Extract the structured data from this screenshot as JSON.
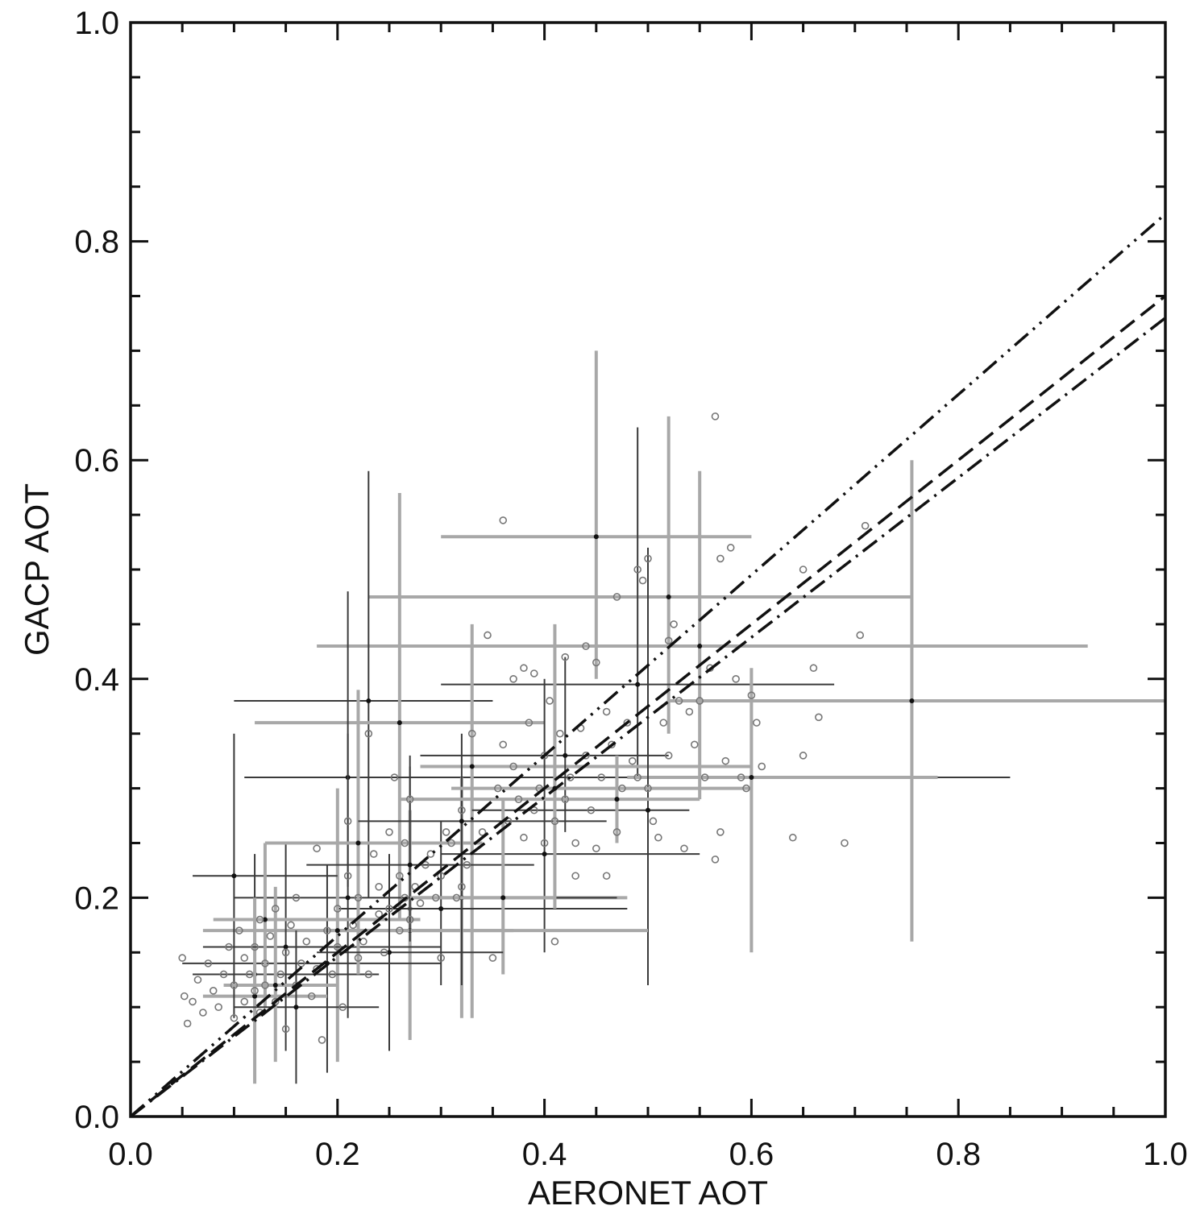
{
  "chart_data": {
    "type": "scatter",
    "title": "",
    "xlabel": "AERONET AOT",
    "ylabel": "GACP AOT",
    "xlim": [
      0.0,
      1.0
    ],
    "ylim": [
      0.0,
      1.0
    ],
    "xticks": [
      "0.0",
      "0.2",
      "0.4",
      "0.6",
      "0.8",
      "1.0"
    ],
    "yticks": [
      "0.0",
      "0.2",
      "0.4",
      "0.6",
      "0.8",
      "1.0"
    ],
    "minor_tick_step": 0.05,
    "grid": false,
    "legend": "none",
    "lines": [
      {
        "style": "dash-dot-dot",
        "x": [
          0.0,
          1.0
        ],
        "y": [
          0.0,
          0.825
        ]
      },
      {
        "style": "dashed",
        "x": [
          0.0,
          1.0
        ],
        "y": [
          0.0,
          0.75
        ]
      },
      {
        "style": "dash-dot",
        "x": [
          0.0,
          1.0
        ],
        "y": [
          0.0,
          0.73
        ]
      }
    ],
    "points": [
      {
        "x": 0.05,
        "y": 0.145
      },
      {
        "x": 0.052,
        "y": 0.11
      },
      {
        "x": 0.055,
        "y": 0.085
      },
      {
        "x": 0.06,
        "y": 0.105
      },
      {
        "x": 0.065,
        "y": 0.125
      },
      {
        "x": 0.07,
        "y": 0.095
      },
      {
        "x": 0.075,
        "y": 0.14
      },
      {
        "x": 0.08,
        "y": 0.115
      },
      {
        "x": 0.085,
        "y": 0.1
      },
      {
        "x": 0.09,
        "y": 0.13
      },
      {
        "x": 0.095,
        "y": 0.155
      },
      {
        "x": 0.1,
        "y": 0.12
      },
      {
        "x": 0.1,
        "y": 0.09
      },
      {
        "x": 0.105,
        "y": 0.17
      },
      {
        "x": 0.11,
        "y": 0.145
      },
      {
        "x": 0.11,
        "y": 0.105
      },
      {
        "x": 0.115,
        "y": 0.13
      },
      {
        "x": 0.12,
        "y": 0.155
      },
      {
        "x": 0.12,
        "y": 0.115
      },
      {
        "x": 0.125,
        "y": 0.18
      },
      {
        "x": 0.125,
        "y": 0.095
      },
      {
        "x": 0.13,
        "y": 0.14
      },
      {
        "x": 0.13,
        "y": 0.12
      },
      {
        "x": 0.135,
        "y": 0.165
      },
      {
        "x": 0.14,
        "y": 0.105
      },
      {
        "x": 0.14,
        "y": 0.19
      },
      {
        "x": 0.145,
        "y": 0.13
      },
      {
        "x": 0.15,
        "y": 0.15
      },
      {
        "x": 0.15,
        "y": 0.08
      },
      {
        "x": 0.155,
        "y": 0.175
      },
      {
        "x": 0.16,
        "y": 0.12
      },
      {
        "x": 0.16,
        "y": 0.2
      },
      {
        "x": 0.165,
        "y": 0.14
      },
      {
        "x": 0.17,
        "y": 0.16
      },
      {
        "x": 0.175,
        "y": 0.11
      },
      {
        "x": 0.18,
        "y": 0.245
      },
      {
        "x": 0.18,
        "y": 0.135
      },
      {
        "x": 0.185,
        "y": 0.07
      },
      {
        "x": 0.19,
        "y": 0.17
      },
      {
        "x": 0.195,
        "y": 0.13
      },
      {
        "x": 0.2,
        "y": 0.19
      },
      {
        "x": 0.2,
        "y": 0.155
      },
      {
        "x": 0.205,
        "y": 0.1
      },
      {
        "x": 0.21,
        "y": 0.22
      },
      {
        "x": 0.21,
        "y": 0.27
      },
      {
        "x": 0.215,
        "y": 0.175
      },
      {
        "x": 0.22,
        "y": 0.145
      },
      {
        "x": 0.22,
        "y": 0.2
      },
      {
        "x": 0.225,
        "y": 0.16
      },
      {
        "x": 0.23,
        "y": 0.35
      },
      {
        "x": 0.23,
        "y": 0.13
      },
      {
        "x": 0.235,
        "y": 0.24
      },
      {
        "x": 0.24,
        "y": 0.185
      },
      {
        "x": 0.24,
        "y": 0.21
      },
      {
        "x": 0.245,
        "y": 0.15
      },
      {
        "x": 0.25,
        "y": 0.26
      },
      {
        "x": 0.25,
        "y": 0.19
      },
      {
        "x": 0.255,
        "y": 0.31
      },
      {
        "x": 0.26,
        "y": 0.17
      },
      {
        "x": 0.26,
        "y": 0.22
      },
      {
        "x": 0.265,
        "y": 0.2
      },
      {
        "x": 0.265,
        "y": 0.25
      },
      {
        "x": 0.27,
        "y": 0.18
      },
      {
        "x": 0.27,
        "y": 0.29
      },
      {
        "x": 0.275,
        "y": 0.21
      },
      {
        "x": 0.28,
        "y": 0.195
      },
      {
        "x": 0.285,
        "y": 0.23
      },
      {
        "x": 0.29,
        "y": 0.24
      },
      {
        "x": 0.295,
        "y": 0.2
      },
      {
        "x": 0.3,
        "y": 0.22
      },
      {
        "x": 0.3,
        "y": 0.145
      },
      {
        "x": 0.305,
        "y": 0.26
      },
      {
        "x": 0.31,
        "y": 0.25
      },
      {
        "x": 0.315,
        "y": 0.2
      },
      {
        "x": 0.32,
        "y": 0.21
      },
      {
        "x": 0.32,
        "y": 0.28
      },
      {
        "x": 0.325,
        "y": 0.23
      },
      {
        "x": 0.33,
        "y": 0.35
      },
      {
        "x": 0.34,
        "y": 0.26
      },
      {
        "x": 0.345,
        "y": 0.44
      },
      {
        "x": 0.35,
        "y": 0.145
      },
      {
        "x": 0.355,
        "y": 0.3
      },
      {
        "x": 0.36,
        "y": 0.545
      },
      {
        "x": 0.36,
        "y": 0.34
      },
      {
        "x": 0.365,
        "y": 0.27
      },
      {
        "x": 0.37,
        "y": 0.32
      },
      {
        "x": 0.37,
        "y": 0.4
      },
      {
        "x": 0.375,
        "y": 0.29
      },
      {
        "x": 0.38,
        "y": 0.41
      },
      {
        "x": 0.38,
        "y": 0.255
      },
      {
        "x": 0.385,
        "y": 0.36
      },
      {
        "x": 0.39,
        "y": 0.28
      },
      {
        "x": 0.39,
        "y": 0.405
      },
      {
        "x": 0.395,
        "y": 0.3
      },
      {
        "x": 0.4,
        "y": 0.33
      },
      {
        "x": 0.4,
        "y": 0.25
      },
      {
        "x": 0.405,
        "y": 0.38
      },
      {
        "x": 0.41,
        "y": 0.27
      },
      {
        "x": 0.41,
        "y": 0.16
      },
      {
        "x": 0.415,
        "y": 0.35
      },
      {
        "x": 0.42,
        "y": 0.42
      },
      {
        "x": 0.42,
        "y": 0.29
      },
      {
        "x": 0.425,
        "y": 0.31
      },
      {
        "x": 0.43,
        "y": 0.25
      },
      {
        "x": 0.43,
        "y": 0.22
      },
      {
        "x": 0.435,
        "y": 0.355
      },
      {
        "x": 0.44,
        "y": 0.43
      },
      {
        "x": 0.44,
        "y": 0.33
      },
      {
        "x": 0.445,
        "y": 0.28
      },
      {
        "x": 0.45,
        "y": 0.415
      },
      {
        "x": 0.45,
        "y": 0.245
      },
      {
        "x": 0.455,
        "y": 0.31
      },
      {
        "x": 0.46,
        "y": 0.37
      },
      {
        "x": 0.46,
        "y": 0.22
      },
      {
        "x": 0.465,
        "y": 0.34
      },
      {
        "x": 0.47,
        "y": 0.26
      },
      {
        "x": 0.47,
        "y": 0.475
      },
      {
        "x": 0.475,
        "y": 0.3
      },
      {
        "x": 0.48,
        "y": 0.36
      },
      {
        "x": 0.485,
        "y": 0.325
      },
      {
        "x": 0.49,
        "y": 0.31
      },
      {
        "x": 0.49,
        "y": 0.5
      },
      {
        "x": 0.495,
        "y": 0.49
      },
      {
        "x": 0.5,
        "y": 0.3
      },
      {
        "x": 0.5,
        "y": 0.51
      },
      {
        "x": 0.505,
        "y": 0.27
      },
      {
        "x": 0.51,
        "y": 0.255
      },
      {
        "x": 0.515,
        "y": 0.36
      },
      {
        "x": 0.52,
        "y": 0.33
      },
      {
        "x": 0.52,
        "y": 0.435
      },
      {
        "x": 0.525,
        "y": 0.45
      },
      {
        "x": 0.53,
        "y": 0.38
      },
      {
        "x": 0.535,
        "y": 0.245
      },
      {
        "x": 0.54,
        "y": 0.37
      },
      {
        "x": 0.545,
        "y": 0.34
      },
      {
        "x": 0.55,
        "y": 0.38
      },
      {
        "x": 0.555,
        "y": 0.31
      },
      {
        "x": 0.56,
        "y": 0.41
      },
      {
        "x": 0.565,
        "y": 0.64
      },
      {
        "x": 0.565,
        "y": 0.235
      },
      {
        "x": 0.57,
        "y": 0.26
      },
      {
        "x": 0.57,
        "y": 0.51
      },
      {
        "x": 0.575,
        "y": 0.325
      },
      {
        "x": 0.58,
        "y": 0.52
      },
      {
        "x": 0.585,
        "y": 0.4
      },
      {
        "x": 0.59,
        "y": 0.31
      },
      {
        "x": 0.595,
        "y": 0.3
      },
      {
        "x": 0.6,
        "y": 0.385
      },
      {
        "x": 0.605,
        "y": 0.36
      },
      {
        "x": 0.61,
        "y": 0.32
      },
      {
        "x": 0.64,
        "y": 0.255
      },
      {
        "x": 0.65,
        "y": 0.5
      },
      {
        "x": 0.65,
        "y": 0.33
      },
      {
        "x": 0.66,
        "y": 0.41
      },
      {
        "x": 0.665,
        "y": 0.365
      },
      {
        "x": 0.69,
        "y": 0.25
      },
      {
        "x": 0.705,
        "y": 0.44
      },
      {
        "x": 0.71,
        "y": 0.54
      }
    ],
    "error_bars": [
      {
        "x": 0.45,
        "y": 0.53,
        "xlo": 0.3,
        "xhi": 0.6,
        "ylo": 0.4,
        "yhi": 0.7,
        "shade": "light"
      },
      {
        "x": 0.52,
        "y": 0.475,
        "xlo": 0.23,
        "xhi": 0.755,
        "ylo": 0.35,
        "yhi": 0.64,
        "shade": "light"
      },
      {
        "x": 0.55,
        "y": 0.43,
        "xlo": 0.18,
        "xhi": 0.925,
        "ylo": 0.29,
        "yhi": 0.59,
        "shade": "light"
      },
      {
        "x": 0.755,
        "y": 0.38,
        "xlo": 0.52,
        "xhi": 1.0,
        "ylo": 0.16,
        "yhi": 0.6,
        "shade": "light"
      },
      {
        "x": 0.49,
        "y": 0.395,
        "xlo": 0.3,
        "xhi": 0.68,
        "ylo": 0.31,
        "yhi": 0.63,
        "shade": "dark"
      },
      {
        "x": 0.23,
        "y": 0.38,
        "xlo": 0.1,
        "xhi": 0.35,
        "ylo": 0.2,
        "yhi": 0.59,
        "shade": "dark"
      },
      {
        "x": 0.26,
        "y": 0.36,
        "xlo": 0.12,
        "xhi": 0.4,
        "ylo": 0.18,
        "yhi": 0.57,
        "shade": "light"
      },
      {
        "x": 0.21,
        "y": 0.31,
        "xlo": 0.11,
        "xhi": 0.85,
        "ylo": 0.21,
        "yhi": 0.48,
        "shade": "dark"
      },
      {
        "x": 0.6,
        "y": 0.31,
        "xlo": 0.48,
        "xhi": 0.78,
        "ylo": 0.15,
        "yhi": 0.41,
        "shade": "light"
      },
      {
        "x": 0.33,
        "y": 0.32,
        "xlo": 0.28,
        "xhi": 0.6,
        "ylo": 0.09,
        "yhi": 0.45,
        "shade": "light"
      },
      {
        "x": 0.5,
        "y": 0.28,
        "xlo": 0.33,
        "xhi": 0.54,
        "ylo": 0.12,
        "yhi": 0.52,
        "shade": "dark"
      },
      {
        "x": 0.4,
        "y": 0.24,
        "xlo": 0.3,
        "xhi": 0.55,
        "ylo": 0.15,
        "yhi": 0.4,
        "shade": "dark"
      },
      {
        "x": 0.32,
        "y": 0.2,
        "xlo": 0.28,
        "xhi": 0.48,
        "ylo": 0.09,
        "yhi": 0.31,
        "shade": "light"
      },
      {
        "x": 0.27,
        "y": 0.19,
        "xlo": 0.2,
        "xhi": 0.36,
        "ylo": 0.1,
        "yhi": 0.32,
        "shade": "dark"
      },
      {
        "x": 0.27,
        "y": 0.17,
        "xlo": 0.19,
        "xhi": 0.5,
        "ylo": 0.07,
        "yhi": 0.28,
        "shade": "light"
      },
      {
        "x": 0.3,
        "y": 0.19,
        "xlo": 0.2,
        "xhi": 0.48,
        "ylo": 0.12,
        "yhi": 0.27,
        "shade": "dark"
      },
      {
        "x": 0.21,
        "y": 0.2,
        "xlo": 0.1,
        "xhi": 0.47,
        "ylo": 0.09,
        "yhi": 0.35,
        "shade": "dark"
      },
      {
        "x": 0.2,
        "y": 0.17,
        "xlo": 0.07,
        "xhi": 0.37,
        "ylo": 0.05,
        "yhi": 0.3,
        "shade": "light"
      },
      {
        "x": 0.19,
        "y": 0.14,
        "xlo": 0.05,
        "xhi": 0.3,
        "ylo": 0.04,
        "yhi": 0.23,
        "shade": "dark"
      },
      {
        "x": 0.12,
        "y": 0.13,
        "xlo": 0.06,
        "xhi": 0.24,
        "ylo": 0.04,
        "yhi": 0.24,
        "shade": "dark"
      },
      {
        "x": 0.12,
        "y": 0.11,
        "xlo": 0.07,
        "xhi": 0.19,
        "ylo": 0.03,
        "yhi": 0.2,
        "shade": "light"
      },
      {
        "x": 0.1,
        "y": 0.22,
        "xlo": 0.06,
        "xhi": 0.2,
        "ylo": 0.09,
        "yhi": 0.35,
        "shade": "dark"
      },
      {
        "x": 0.15,
        "y": 0.155,
        "xlo": 0.07,
        "xhi": 0.3,
        "ylo": 0.06,
        "yhi": 0.25,
        "shade": "dark"
      },
      {
        "x": 0.13,
        "y": 0.18,
        "xlo": 0.08,
        "xhi": 0.28,
        "ylo": 0.1,
        "yhi": 0.25,
        "shade": "light"
      },
      {
        "x": 0.22,
        "y": 0.25,
        "xlo": 0.13,
        "xhi": 0.34,
        "ylo": 0.13,
        "yhi": 0.39,
        "shade": "light"
      },
      {
        "x": 0.32,
        "y": 0.27,
        "xlo": 0.22,
        "xhi": 0.46,
        "ylo": 0.12,
        "yhi": 0.35,
        "shade": "dark"
      },
      {
        "x": 0.42,
        "y": 0.33,
        "xlo": 0.28,
        "xhi": 0.52,
        "ylo": 0.26,
        "yhi": 0.42,
        "shade": "dark"
      },
      {
        "x": 0.27,
        "y": 0.23,
        "xlo": 0.17,
        "xhi": 0.39,
        "ylo": 0.16,
        "yhi": 0.33,
        "shade": "dark"
      },
      {
        "x": 0.47,
        "y": 0.29,
        "xlo": 0.26,
        "xhi": 0.55,
        "ylo": 0.25,
        "yhi": 0.33,
        "shade": "light"
      },
      {
        "x": 0.41,
        "y": 0.3,
        "xlo": 0.31,
        "xhi": 0.6,
        "ylo": 0.19,
        "yhi": 0.45,
        "shade": "light"
      },
      {
        "x": 0.36,
        "y": 0.2,
        "xlo": 0.27,
        "xhi": 0.41,
        "ylo": 0.13,
        "yhi": 0.29,
        "shade": "light"
      },
      {
        "x": 0.25,
        "y": 0.15,
        "xlo": 0.18,
        "xhi": 0.36,
        "ylo": 0.06,
        "yhi": 0.24,
        "shade": "dark"
      },
      {
        "x": 0.16,
        "y": 0.1,
        "xlo": 0.1,
        "xhi": 0.24,
        "ylo": 0.03,
        "yhi": 0.17,
        "shade": "dark"
      },
      {
        "x": 0.14,
        "y": 0.12,
        "xlo": 0.09,
        "xhi": 0.2,
        "ylo": 0.05,
        "yhi": 0.21,
        "shade": "light"
      }
    ]
  }
}
